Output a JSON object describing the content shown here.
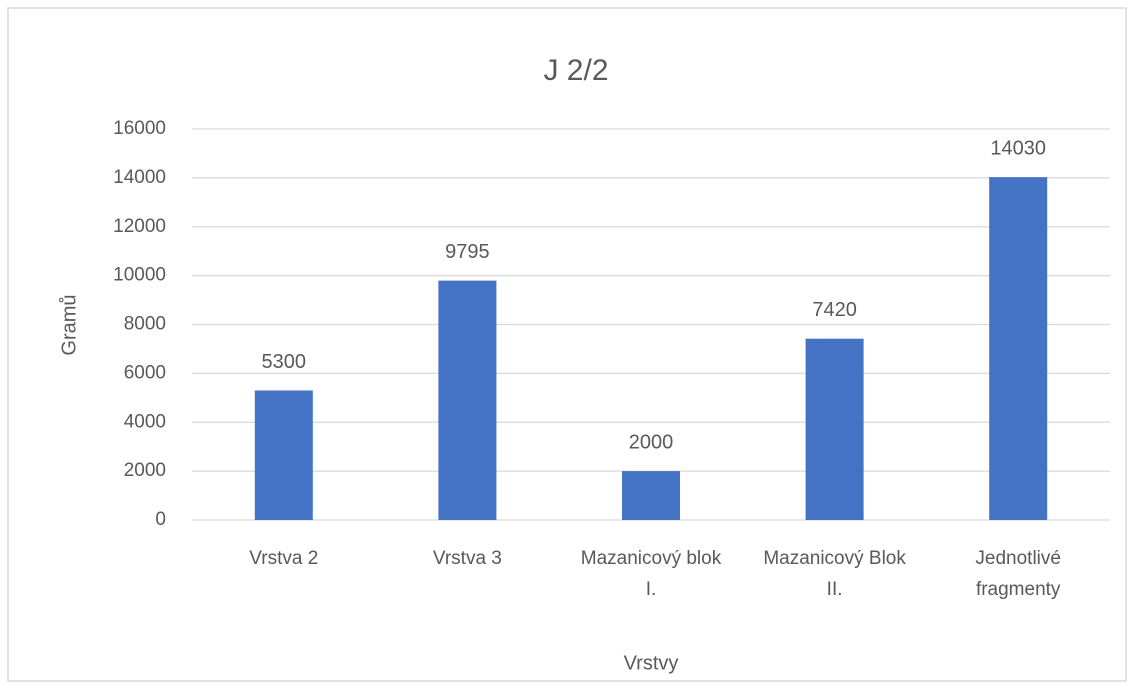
{
  "chart_data": {
    "type": "bar",
    "title": "J 2/2",
    "x_label": "Vrstvy",
    "y_label": "Gramů",
    "categories": [
      "Vrstva 2",
      "Vrstva 3",
      "Mazanicový blok I.",
      "Mazanicový Blok II.",
      "Jednotlivé fragmenty"
    ],
    "values": [
      5300,
      9795,
      2000,
      7420,
      14030
    ],
    "color": "#4472c4",
    "ylim": [
      0,
      16000
    ],
    "yticks": [
      0,
      2000,
      4000,
      6000,
      8000,
      10000,
      12000,
      14000,
      16000
    ],
    "grid": true
  }
}
